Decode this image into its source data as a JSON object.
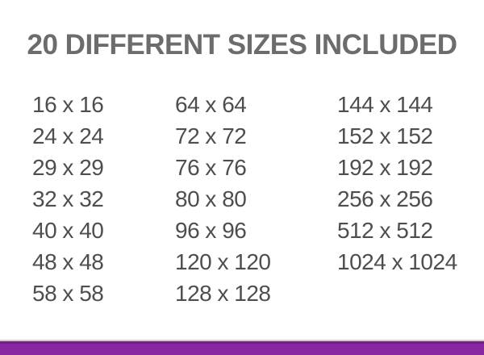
{
  "header": {
    "title": "20 DIFFERENT SIZES INCLUDED"
  },
  "sizes": {
    "columns": [
      [
        "16 x 16",
        "24 x 24",
        "29 x 29",
        "32 x 32",
        "40 x 40",
        "48 x 48",
        "58 x 58"
      ],
      [
        "64 x 64",
        "72 x 72",
        "76 x 76",
        "80 x 80",
        "96 x 96",
        "120 x 120",
        "128 x 128"
      ],
      [
        "144 x 144",
        "152 x 152",
        "192 x 192",
        "256 x 256",
        "512 x 512",
        "1024 x 1024"
      ]
    ]
  },
  "colors": {
    "background": "#ffffff",
    "title_text": "#6b6c6e",
    "size_text": "#4d4e50",
    "accent_bar": "#8927a3",
    "accent_bar_highlight": "#dec2df"
  }
}
